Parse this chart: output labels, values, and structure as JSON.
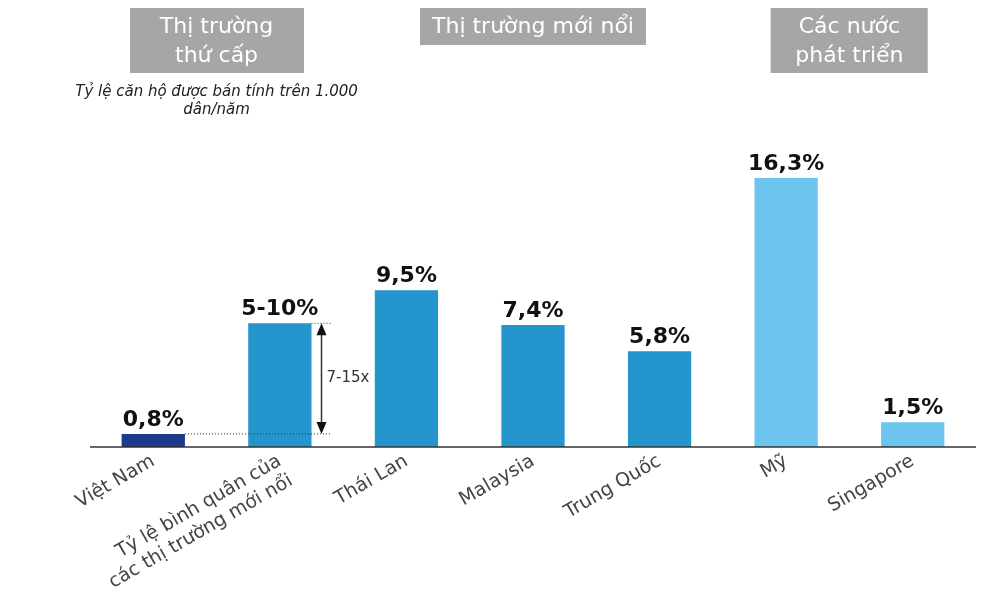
{
  "chart_data": {
    "type": "bar",
    "subtitle": "Tỷ lệ căn hộ được bán tính trên 1.000 dân/năm",
    "categories": [
      "Việt Nam",
      "Tỷ lệ bình quân của các thị trường mới nổi",
      "Thái Lan",
      "Malaysia",
      "Trung Quốc",
      "Mỹ",
      "Singapore"
    ],
    "values": [
      0.8,
      7.5,
      9.5,
      7.4,
      5.8,
      16.3,
      1.5
    ],
    "value_labels": [
      "0,8%",
      null,
      "9,5%",
      "7,4%",
      "5,8%",
      "16,3%",
      "1,5%"
    ],
    "colors": [
      "#1d3a8c",
      "#2596cd",
      "#2596cd",
      "#2596cd",
      "#2596cd",
      "#6cc5ee",
      "#6cc5ee"
    ],
    "annotations": [
      "Thị trường thứ cấp",
      "Thị trường mới nổi",
      "Các nước phát triển",
      "7-15x",
      {
        "text": "5-10%",
        "x": "Tỷ lệ bình quân của các thị trường mới nổi",
        "y": 7.5
      }
    ],
    "grid": false,
    "legend": false
  }
}
